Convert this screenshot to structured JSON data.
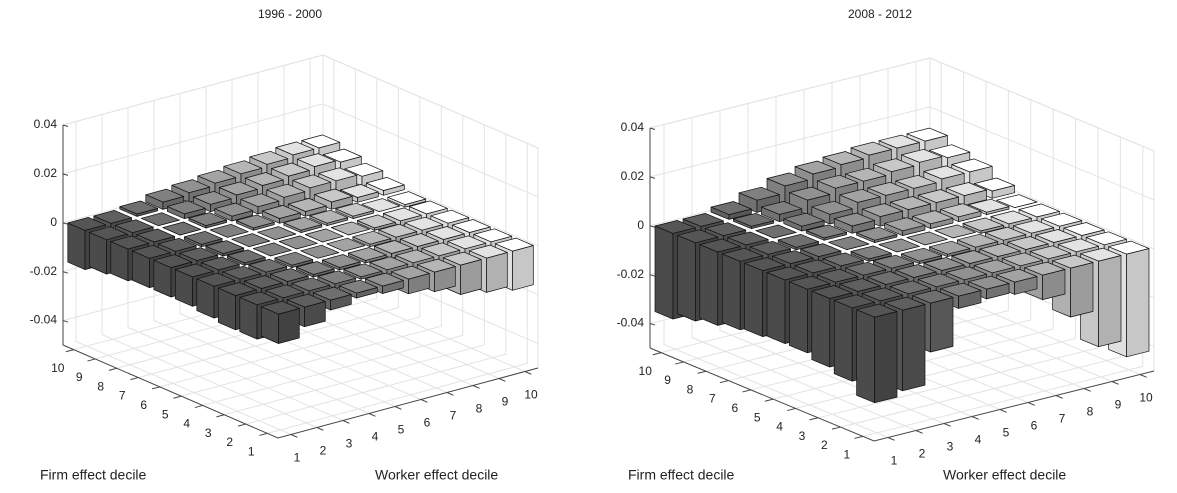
{
  "chart_data": [
    {
      "type": "bar3d",
      "title": "1996 - 2000",
      "xlabel": "Worker effect decile",
      "ylabel": "Firm effect decile",
      "xticks": [
        1,
        2,
        3,
        4,
        5,
        6,
        7,
        8,
        9,
        10
      ],
      "yticks": [
        1,
        2,
        3,
        4,
        5,
        6,
        7,
        8,
        9,
        10
      ],
      "zlim": [
        -0.05,
        0.04
      ],
      "zticks": [
        -0.04,
        -0.02,
        0,
        0.02,
        0.04
      ],
      "grid": true,
      "colors": [
        "#555555",
        "#5f5f5f",
        "#6f6f6f",
        "#808080",
        "#919191",
        "#a3a3a3",
        "#b5b5b5",
        "#c8c8c8",
        "#e3e3e3",
        "#ffffff"
      ],
      "values": [
        [
          -0.012,
          -0.008,
          -0.004,
          -0.002,
          -0.003,
          -0.006,
          -0.008,
          -0.012,
          -0.014,
          -0.016
        ],
        [
          -0.014,
          -0.006,
          -0.003,
          -0.002,
          -0.001,
          -0.002,
          -0.003,
          -0.006,
          -0.01,
          -0.014
        ],
        [
          -0.014,
          -0.005,
          -0.002,
          -0.001,
          -0.001,
          -0.001,
          -0.002,
          -0.003,
          -0.006,
          -0.01
        ],
        [
          -0.013,
          -0.004,
          -0.002,
          -0.001,
          0,
          0,
          -0.001,
          -0.002,
          -0.003,
          -0.006
        ],
        [
          -0.012,
          -0.004,
          -0.001,
          0,
          0,
          0,
          0,
          -0.001,
          -0.002,
          -0.003
        ],
        [
          -0.012,
          -0.004,
          -0.001,
          0,
          0,
          0.001,
          0.001,
          0.001,
          0,
          -0.001
        ],
        [
          -0.012,
          -0.004,
          -0.001,
          0,
          0.001,
          0.002,
          0.002,
          0.003,
          0.002,
          0.002
        ],
        [
          -0.013,
          -0.003,
          0,
          0.001,
          0.002,
          0.003,
          0.004,
          0.005,
          0.005,
          0.004
        ],
        [
          -0.014,
          -0.002,
          0,
          0.002,
          0.003,
          0.004,
          0.005,
          0.006,
          0.007,
          0.006
        ],
        [
          -0.016,
          -0.002,
          0.001,
          0.003,
          0.004,
          0.005,
          0.006,
          0.007,
          0.008,
          0.008
        ]
      ]
    },
    {
      "type": "bar3d",
      "title": "2008 - 2012",
      "xlabel": "Worker effect decile",
      "ylabel": "Firm effect decile",
      "xticks": [
        1,
        2,
        3,
        4,
        5,
        6,
        7,
        8,
        9,
        10
      ],
      "yticks": [
        1,
        2,
        3,
        4,
        5,
        6,
        7,
        8,
        9,
        10
      ],
      "zlim": [
        -0.05,
        0.04
      ],
      "zticks": [
        -0.04,
        -0.02,
        0,
        0.02,
        0.04
      ],
      "grid": true,
      "colors": [
        "#555555",
        "#5f5f5f",
        "#6f6f6f",
        "#808080",
        "#919191",
        "#a3a3a3",
        "#b5b5b5",
        "#c8c8c8",
        "#e3e3e3",
        "#ffffff"
      ],
      "values": [
        [
          -0.035,
          -0.033,
          -0.02,
          -0.005,
          -0.004,
          -0.005,
          -0.01,
          -0.02,
          -0.035,
          -0.042
        ],
        [
          -0.03,
          -0.025,
          -0.01,
          -0.004,
          -0.003,
          -0.003,
          -0.005,
          -0.01,
          -0.015,
          -0.02
        ],
        [
          -0.028,
          -0.012,
          -0.005,
          -0.003,
          -0.002,
          -0.002,
          -0.003,
          -0.005,
          -0.008,
          -0.012
        ],
        [
          -0.026,
          -0.008,
          -0.004,
          -0.002,
          -0.001,
          -0.001,
          -0.002,
          -0.003,
          -0.004,
          -0.006
        ],
        [
          -0.026,
          -0.006,
          -0.003,
          -0.001,
          0,
          0,
          0,
          -0.001,
          -0.002,
          -0.003
        ],
        [
          -0.027,
          -0.005,
          -0.002,
          0,
          0.001,
          0.002,
          0.002,
          0.002,
          0.001,
          0
        ],
        [
          -0.028,
          -0.005,
          -0.001,
          0.001,
          0.003,
          0.004,
          0.004,
          0.004,
          0.004,
          0.003
        ],
        [
          -0.03,
          -0.004,
          0,
          0.002,
          0.004,
          0.006,
          0.006,
          0.006,
          0.007,
          0.007
        ],
        [
          -0.032,
          -0.003,
          0.001,
          0.003,
          0.006,
          0.008,
          0.008,
          0.009,
          0.01,
          0.009
        ],
        [
          -0.035,
          -0.003,
          0.002,
          0.005,
          0.008,
          0.01,
          0.011,
          0.012,
          0.012,
          0.012
        ]
      ]
    }
  ]
}
